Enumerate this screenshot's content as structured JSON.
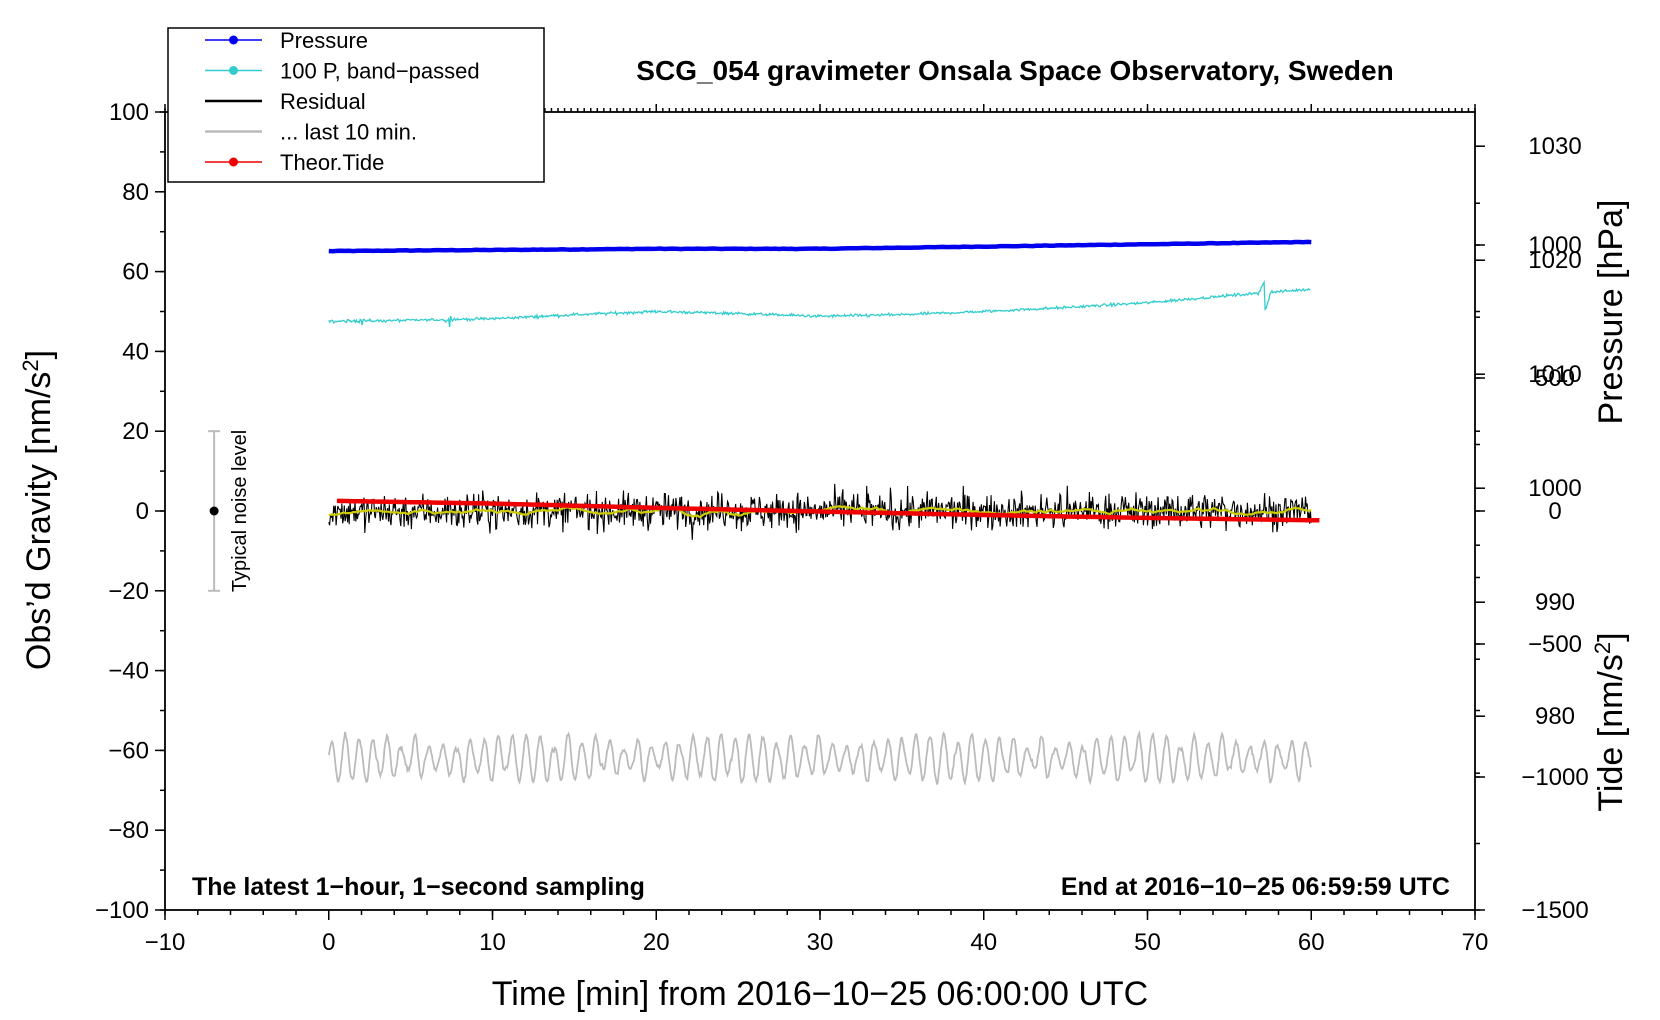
{
  "chart_data": {
    "type": "line",
    "title": "SCG_054 gravimeter Onsala Space Observatory, Sweden",
    "xlabel": "Time [min] from 2016−10−25 06:00:00 UTC",
    "ylabel_left": "Obs’d Gravity [nm/s",
    "ylabel_left_sup": "2",
    "ylabel_left_end": "]",
    "ylabel_pressure": "Pressure [hPa]",
    "ylabel_tide": "Tide [nm/s",
    "ylabel_tide_sup": "2",
    "ylabel_tide_end": "]",
    "xlim": [
      -10,
      70
    ],
    "ylim": [
      -100,
      100
    ],
    "pressure_lim": [
      963,
      1033
    ],
    "tide_lim": [
      -1500,
      1500
    ],
    "x_ticks": [
      {
        "v": -10,
        "label": "−10"
      },
      {
        "v": 0,
        "label": "0"
      },
      {
        "v": 10,
        "label": "10"
      },
      {
        "v": 20,
        "label": "20"
      },
      {
        "v": 30,
        "label": "30"
      },
      {
        "v": 40,
        "label": "40"
      },
      {
        "v": 50,
        "label": "50"
      },
      {
        "v": 60,
        "label": "60"
      },
      {
        "v": 70,
        "label": "70"
      }
    ],
    "y_ticks": [
      {
        "v": 100,
        "label": "100"
      },
      {
        "v": 80,
        "label": "80"
      },
      {
        "v": 60,
        "label": "60"
      },
      {
        "v": 40,
        "label": "40"
      },
      {
        "v": 20,
        "label": "20"
      },
      {
        "v": 0,
        "label": "0"
      },
      {
        "v": -20,
        "label": "−20"
      },
      {
        "v": -40,
        "label": "−40"
      },
      {
        "v": -60,
        "label": "−60"
      },
      {
        "v": -80,
        "label": "−80"
      },
      {
        "v": -100,
        "label": "−100"
      }
    ],
    "pressure_ticks": [
      {
        "v": 1030,
        "label": "1030"
      },
      {
        "v": 1020,
        "label": "1020"
      },
      {
        "v": 1010,
        "label": "1010"
      },
      {
        "v": 1000,
        "label": "1000"
      },
      {
        "v": 990,
        "label": "990"
      },
      {
        "v": 980,
        "label": "980"
      }
    ],
    "tide_ticks": [
      {
        "v": 1000,
        "label": "1000"
      },
      {
        "v": 500,
        "label": "500"
      },
      {
        "v": 0,
        "label": "0"
      },
      {
        "v": -500,
        "label": "−500"
      },
      {
        "v": -1000,
        "label": "−1000"
      },
      {
        "v": -1500,
        "label": "−1500"
      }
    ],
    "series": [
      {
        "name": "Pressure",
        "color": "#0000ee",
        "axis": "pressure",
        "x": [
          0,
          10,
          20,
          30,
          40,
          50,
          60
        ],
        "values": [
          1020.8,
          1020.9,
          1021.0,
          1021.0,
          1021.2,
          1021.4,
          1021.6
        ]
      },
      {
        "name": "100 P, band−passed",
        "color": "#33cccc",
        "axis": "left",
        "x": [
          0,
          5,
          10,
          15,
          20,
          25,
          30,
          35,
          40,
          45,
          50,
          55,
          60
        ],
        "values": [
          47.5,
          47.8,
          48.2,
          49.2,
          50.0,
          49.5,
          48.8,
          49.2,
          50.0,
          51.0,
          52.2,
          54.0,
          55.6
        ]
      },
      {
        "name": "Residual",
        "color": "#000000",
        "axis": "left",
        "x": [
          0,
          60
        ],
        "values": [
          0,
          0
        ],
        "noise_amplitude": 8
      },
      {
        "name": "... last 10 min.",
        "color": "#bbbbbb",
        "axis": "left",
        "x": [
          0,
          60
        ],
        "values": [
          -62,
          -62
        ],
        "noise_amplitude": 6
      },
      {
        "name": "Theor.Tide",
        "color": "#ee0000",
        "axis": "tide",
        "x": [
          0.5,
          10,
          20,
          30,
          40,
          50,
          60.5
        ],
        "values": [
          38,
          28,
          12,
          -2,
          -15,
          -26,
          -35
        ]
      }
    ],
    "smoothed_residual_color": "#cccc00",
    "noise_level_label": "Typical noise level",
    "noise_level_range": [
      -20,
      20
    ],
    "noise_level_x": -7
  },
  "annotations": {
    "left": "The latest 1−hour, 1−second sampling",
    "right": "End at 2016−10−25 06:59:59 UTC"
  },
  "legend": [
    {
      "label": "Pressure",
      "color": "#0000ee",
      "marker": true
    },
    {
      "label": "100 P, band−passed",
      "color": "#33cccc",
      "marker": true
    },
    {
      "label": "Residual",
      "color": "#000000",
      "marker": false
    },
    {
      "label": "... last 10 min.",
      "color": "#bbbbbb",
      "marker": false
    },
    {
      "label": "Theor.Tide",
      "color": "#ee0000",
      "marker": true
    }
  ]
}
